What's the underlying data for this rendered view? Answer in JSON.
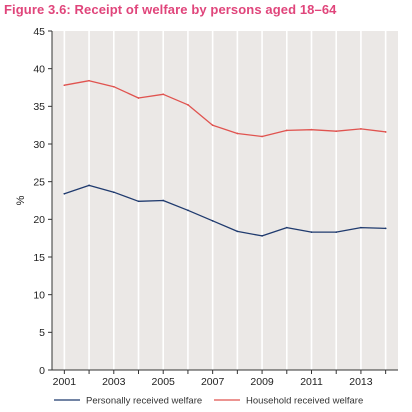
{
  "figure": {
    "title": "Figure 3.6: Receipt of welfare by persons aged 18–64"
  },
  "colors": {
    "title": "#e0457b",
    "plot_bg": "#ebe8e6",
    "grid": "#ffffff",
    "personally": "#1f3a6e",
    "household": "#e0534f"
  },
  "chart_data": {
    "type": "line",
    "title": "Figure 3.6: Receipt of welfare by persons aged 18–64",
    "xlabel": "",
    "ylabel": "%",
    "x": [
      2001,
      2002,
      2003,
      2004,
      2005,
      2006,
      2007,
      2008,
      2009,
      2010,
      2011,
      2012,
      2013,
      2014
    ],
    "xlim": [
      2000.5,
      2014.5
    ],
    "ylim": [
      0,
      45
    ],
    "x_ticks": [
      "2001",
      "2003",
      "2005",
      "2007",
      "2009",
      "2011",
      "2013"
    ],
    "y_ticks": [
      "0",
      "5",
      "10",
      "15",
      "20",
      "25",
      "30",
      "35",
      "40",
      "45"
    ],
    "grid": "vertical",
    "legend_position": "bottom",
    "series": [
      {
        "name": "Personally received welfare",
        "color": "#1f3a6e",
        "values": [
          23.4,
          24.5,
          23.6,
          22.4,
          22.5,
          21.2,
          19.8,
          18.4,
          17.8,
          18.9,
          18.3,
          18.3,
          18.9,
          18.8
        ]
      },
      {
        "name": "Household received welfare",
        "color": "#e0534f",
        "values": [
          37.8,
          38.4,
          37.6,
          36.1,
          36.6,
          35.2,
          32.5,
          31.4,
          31.0,
          31.8,
          31.9,
          31.7,
          32.0,
          31.6
        ]
      }
    ]
  }
}
